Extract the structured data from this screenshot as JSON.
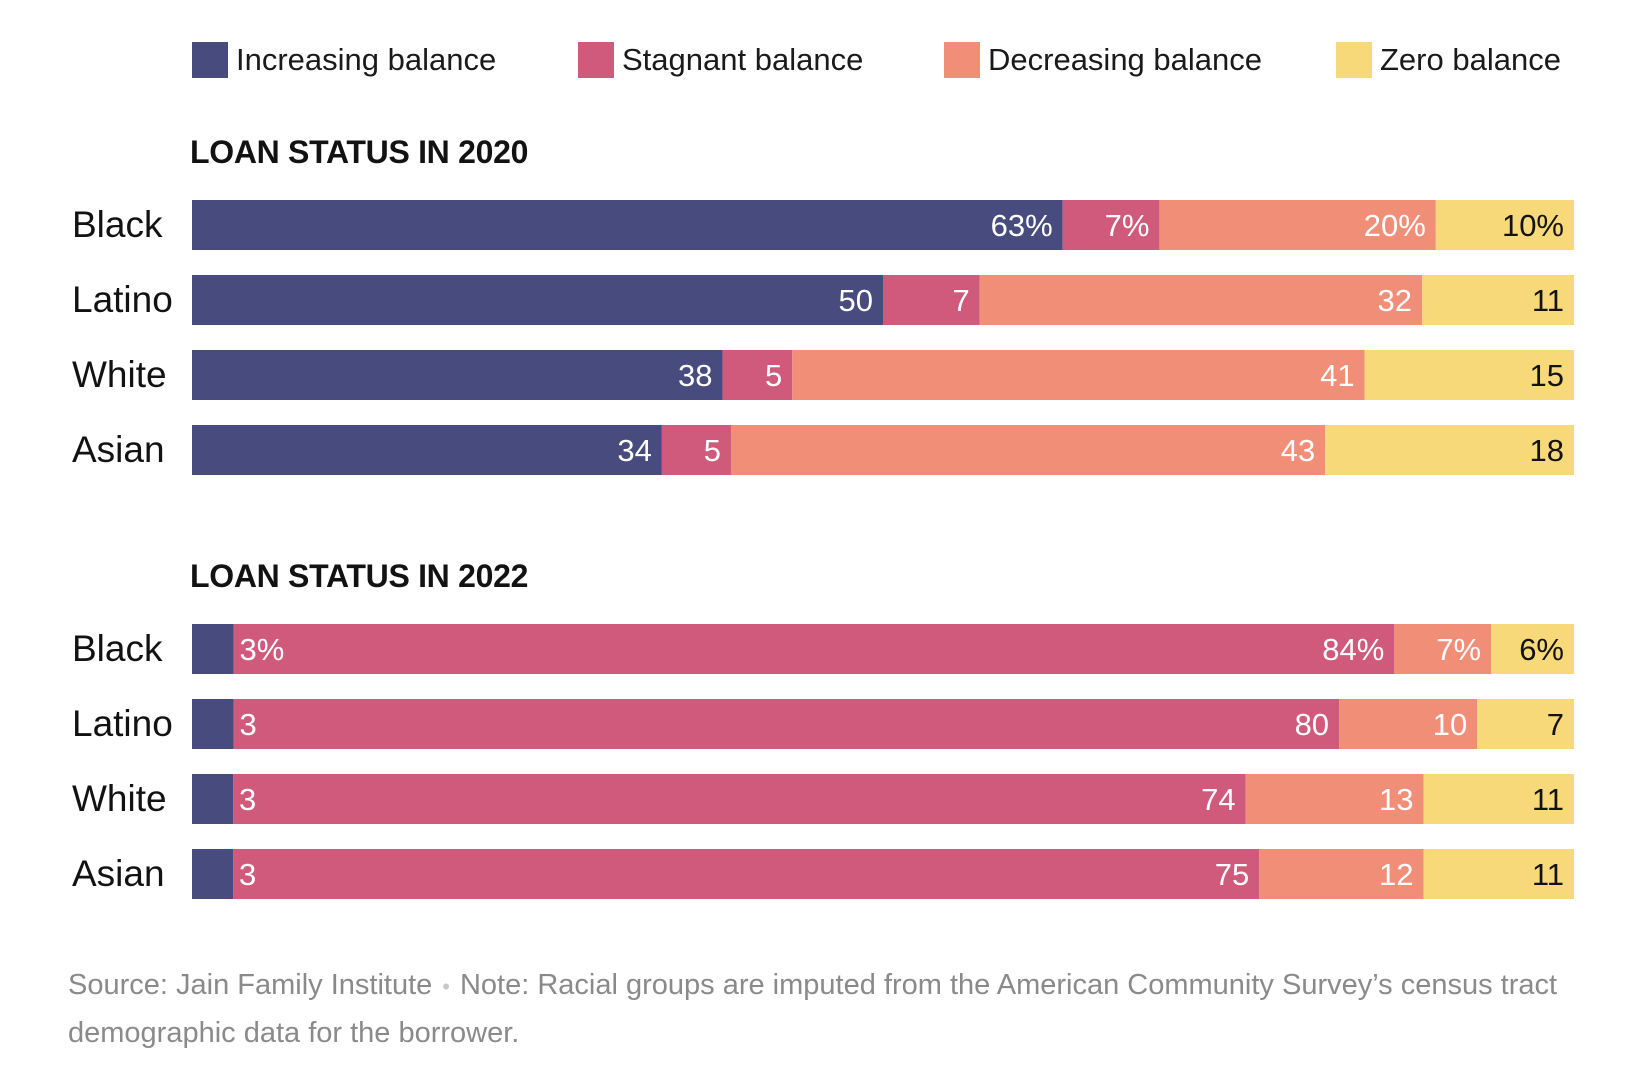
{
  "legend": [
    {
      "label": "Increasing balance",
      "color": "#474b7d"
    },
    {
      "label": "Stagnant balance",
      "color": "#cf5a7c"
    },
    {
      "label": "Decreasing balance",
      "color": "#f08e78"
    },
    {
      "label": "Zero balance",
      "color": "#f7d97a"
    }
  ],
  "chart_data": [
    {
      "type": "bar",
      "stacked": true,
      "orientation": "horizontal",
      "title": "LOAN STATUS IN 2020",
      "categories": [
        "Black",
        "Latino",
        "White",
        "Asian"
      ],
      "series": [
        {
          "name": "Increasing balance",
          "values": [
            63,
            50,
            38,
            34
          ]
        },
        {
          "name": "Stagnant balance",
          "values": [
            7,
            7,
            5,
            5
          ]
        },
        {
          "name": "Decreasing balance",
          "values": [
            20,
            32,
            41,
            43
          ]
        },
        {
          "name": "Zero balance",
          "values": [
            10,
            11,
            15,
            18
          ]
        }
      ],
      "labels": [
        [
          "63%",
          "7%",
          "20%",
          "10%"
        ],
        [
          "50",
          "7",
          "32",
          "11"
        ],
        [
          "38",
          "5",
          "41",
          "15"
        ],
        [
          "34",
          "5",
          "43",
          "18"
        ]
      ],
      "xlim": [
        0,
        100
      ],
      "unit": "%"
    },
    {
      "type": "bar",
      "stacked": true,
      "orientation": "horizontal",
      "title": "LOAN STATUS IN 2022",
      "categories": [
        "Black",
        "Latino",
        "White",
        "Asian"
      ],
      "series": [
        {
          "name": "Increasing balance",
          "values": [
            3,
            3,
            3,
            3
          ]
        },
        {
          "name": "Stagnant balance",
          "values": [
            84,
            80,
            74,
            75
          ]
        },
        {
          "name": "Decreasing balance",
          "values": [
            7,
            10,
            13,
            12
          ]
        },
        {
          "name": "Zero balance",
          "values": [
            6,
            7,
            11,
            11
          ]
        }
      ],
      "labels": [
        [
          "",
          "3%",
          "84%",
          "7%",
          "6%"
        ],
        [
          "",
          "3",
          "80",
          "10",
          "7"
        ],
        [
          "",
          "3",
          "74",
          "13",
          "11"
        ],
        [
          "",
          "3",
          "75",
          "12",
          "11"
        ]
      ],
      "xlim": [
        0,
        100
      ],
      "unit": "%"
    }
  ],
  "footer": {
    "source": "Source: Jain Family Institute",
    "separator": "•",
    "note": "Note: Racial groups are imputed from the American Community Survey’s census tract demographic data for the borrower."
  }
}
